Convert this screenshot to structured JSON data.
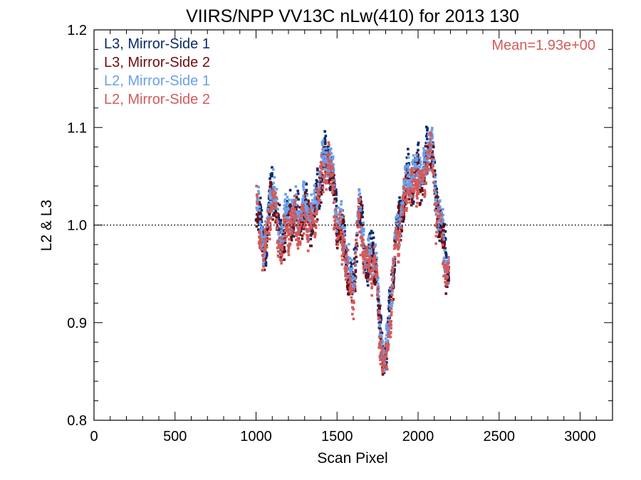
{
  "chart_data": {
    "type": "scatter",
    "title": "VIIRS/NPP VV13C nLw(410) for 2013 130",
    "xlabel": "Scan Pixel",
    "ylabel": "L2 & L3",
    "xlim": [
      0,
      3200
    ],
    "ylim": [
      0.8,
      1.2
    ],
    "x_ticks": [
      0,
      500,
      1000,
      1500,
      2000,
      2500,
      3000
    ],
    "x_tick_labels": [
      "0",
      "500",
      "1000",
      "1500",
      "2000",
      "2500",
      "3000"
    ],
    "y_ticks": [
      0.8,
      0.9,
      1.0,
      1.1,
      1.2
    ],
    "y_tick_labels": [
      "0.8",
      "0.9",
      "1.0",
      "1.1",
      "1.2"
    ],
    "reference_line": {
      "y": 1.0,
      "style": "dotted"
    },
    "annotation": {
      "text": "Mean=1.93e+00",
      "color": "#d45a5a",
      "position": "top-right"
    },
    "legend_position": "top-left",
    "grid": false,
    "trend": [
      [
        1000,
        1.02
      ],
      [
        1030,
        0.99
      ],
      [
        1060,
        0.975
      ],
      [
        1090,
        1.03
      ],
      [
        1110,
        1.035
      ],
      [
        1140,
        0.985
      ],
      [
        1170,
        0.99
      ],
      [
        1210,
        1.01
      ],
      [
        1260,
        1.005
      ],
      [
        1310,
        1.015
      ],
      [
        1350,
        1.0
      ],
      [
        1390,
        1.04
      ],
      [
        1420,
        1.06
      ],
      [
        1440,
        1.07
      ],
      [
        1470,
        1.05
      ],
      [
        1500,
        1.0
      ],
      [
        1540,
        0.99
      ],
      [
        1570,
        0.95
      ],
      [
        1600,
        0.93
      ],
      [
        1630,
        1.01
      ],
      [
        1650,
        1.0
      ],
      [
        1680,
        0.96
      ],
      [
        1710,
        0.97
      ],
      [
        1740,
        0.96
      ],
      [
        1760,
        0.9
      ],
      [
        1790,
        0.86
      ],
      [
        1810,
        0.87
      ],
      [
        1830,
        0.92
      ],
      [
        1860,
        0.98
      ],
      [
        1880,
        1.0
      ],
      [
        1910,
        1.02
      ],
      [
        1940,
        1.05
      ],
      [
        1970,
        1.04
      ],
      [
        2000,
        1.06
      ],
      [
        2030,
        1.04
      ],
      [
        2060,
        1.08
      ],
      [
        2090,
        1.07
      ],
      [
        2110,
        1.02
      ],
      [
        2140,
        1.0
      ],
      [
        2170,
        0.96
      ],
      [
        2190,
        0.95
      ]
    ],
    "series": [
      {
        "name": "L3, Mirror-Side 1",
        "color": "#0d2a6b",
        "jitter": 0.018,
        "offset": 0.004,
        "seed": 11,
        "n": 900
      },
      {
        "name": "L3, Mirror-Side 2",
        "color": "#6e0d12",
        "jitter": 0.018,
        "offset": -0.002,
        "seed": 23,
        "n": 900
      },
      {
        "name": "L2, Mirror-Side 1",
        "color": "#6aa0ec",
        "jitter": 0.02,
        "offset": 0.006,
        "seed": 37,
        "n": 900
      },
      {
        "name": "L2, Mirror-Side 2",
        "color": "#d45a5a",
        "jitter": 0.02,
        "offset": -0.006,
        "seed": 53,
        "n": 900
      }
    ]
  }
}
